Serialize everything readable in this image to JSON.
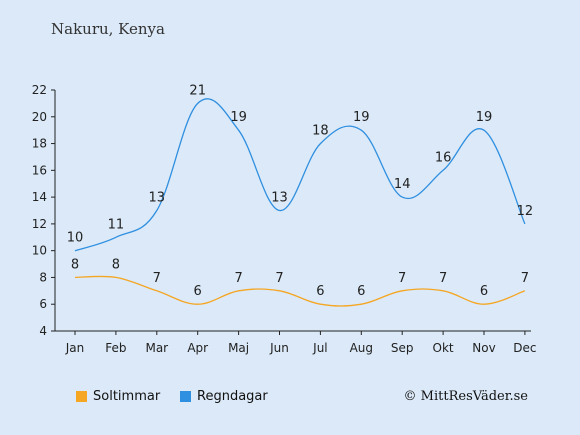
{
  "title": "Nakuru, Kenya",
  "credit": "© MittResVäder.se",
  "colors": {
    "background": "#dbe9f8",
    "sun": "#f5a623",
    "rain": "#2f8fe0",
    "axis": "#222222"
  },
  "chart_data": {
    "type": "line",
    "categories": [
      "Jan",
      "Feb",
      "Mar",
      "Apr",
      "Maj",
      "Jun",
      "Jul",
      "Aug",
      "Sep",
      "Okt",
      "Nov",
      "Dec"
    ],
    "ylim": [
      4,
      22
    ],
    "yticks": [
      4,
      6,
      8,
      10,
      12,
      14,
      16,
      18,
      20,
      22
    ],
    "grid": false,
    "legend_position": "bottom-left",
    "series": [
      {
        "name": "Soltimmar",
        "key": "sun",
        "values": [
          8,
          8,
          7,
          6,
          7,
          7,
          6,
          6,
          7,
          7,
          6,
          7
        ]
      },
      {
        "name": "Regndagar",
        "key": "rain",
        "values": [
          10,
          11,
          13,
          21,
          19,
          13,
          18,
          19,
          14,
          16,
          19,
          12
        ]
      }
    ]
  }
}
